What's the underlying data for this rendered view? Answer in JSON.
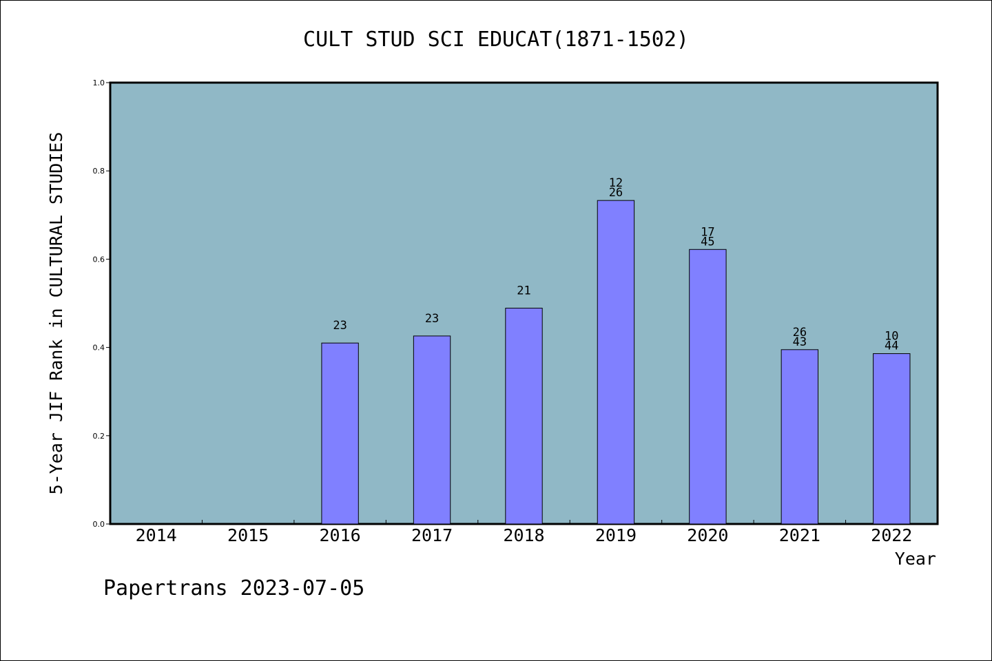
{
  "chart_data": {
    "type": "bar",
    "title": "CULT STUD SCI EDUCAT(1871-1502)",
    "xlabel": "Year",
    "ylabel": "5-Year JIF Rank in CULTURAL STUDIES",
    "categories": [
      "2014",
      "2015",
      "2016",
      "2017",
      "2018",
      "2019",
      "2020",
      "2021",
      "2022"
    ],
    "values": [
      null,
      null,
      0.41,
      0.426,
      0.489,
      0.733,
      0.622,
      0.395,
      0.386
    ],
    "bar_labels": [
      [],
      [],
      [
        "23"
      ],
      [
        "23"
      ],
      [
        "21"
      ],
      [
        "12",
        "26"
      ],
      [
        "17",
        "45"
      ],
      [
        "26",
        "43"
      ],
      [
        "10",
        "44"
      ]
    ],
    "ylim": [
      0,
      1.0
    ],
    "yticks": [
      "0.0",
      "0.2",
      "0.4",
      "0.6",
      "0.8",
      "1.0"
    ],
    "grid": false,
    "colors": {
      "bar": "#8080ff",
      "plot_bg": "#90b8c6",
      "axis": "#000000"
    }
  },
  "footer": {
    "watermark": "Papertrans 2023-07-05"
  }
}
